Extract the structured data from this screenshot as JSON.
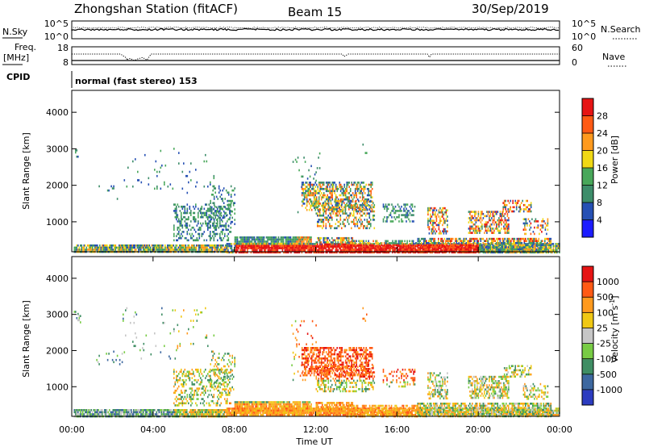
{
  "header": {
    "station": "Zhongshan Station (fitACF)",
    "beam": "Beam 15",
    "date": "30/Sep/2019"
  },
  "top_panels": {
    "nsky_label": "N.Sky",
    "nsky_ticks": [
      "10^5",
      "10^0"
    ],
    "nsearch_label": "N.Search",
    "nsearch_ticks": [
      "10^5",
      "10^0"
    ],
    "freq_label_1": "Freq.",
    "freq_label_2": "[MHz]",
    "freq_ticks": [
      "18",
      "8"
    ],
    "nave_label": "Nave",
    "nave_ticks": [
      "60",
      "0"
    ],
    "cpid_label": "CPID",
    "cpid_text": "normal (fast stereo) 153"
  },
  "chart_data": [
    {
      "type": "heatmap",
      "name": "power-panel",
      "ylabel": "Slant Range [km]",
      "yticks": [
        "4000",
        "3000",
        "2000",
        "1000"
      ],
      "ylim": [
        180,
        4600
      ],
      "xlim": [
        0,
        24
      ],
      "colorbar_label": "Power [dB]",
      "colorbar_ticks": [
        "28",
        "24",
        "20",
        "16",
        "12",
        "8",
        "4"
      ],
      "colorbar_range": [
        0,
        32
      ],
      "colors": [
        "#1c1cff",
        "#2650b4",
        "#3d8d6a",
        "#48a75a",
        "#f0d814",
        "#ff9a1e",
        "#ff5a14",
        "#e61414"
      ]
    },
    {
      "type": "heatmap",
      "name": "velocity-panel",
      "ylabel": "Slant Range [km]",
      "yticks": [
        "4000",
        "3000",
        "2000",
        "1000"
      ],
      "ylim": [
        180,
        4600
      ],
      "xlim": [
        0,
        24
      ],
      "colorbar_label": "Velocity [m s",
      "colorbar_label_sup": "-1",
      "colorbar_label_end": "]",
      "colorbar_ticks": [
        "1000",
        "500",
        "100",
        "25",
        "-25",
        "-100",
        "-500",
        "-1000"
      ],
      "colors": [
        "#2c3cc0",
        "#3d68a0",
        "#3f8e64",
        "#78cc44",
        "#c6c6c6",
        "#f0c814",
        "#ff9a1e",
        "#ff5a14",
        "#e61414"
      ]
    }
  ],
  "x_axis": {
    "ticks": [
      "00:00",
      "04:00",
      "08:00",
      "12:00",
      "16:00",
      "20:00",
      "00:00"
    ],
    "label": "Time UT"
  }
}
